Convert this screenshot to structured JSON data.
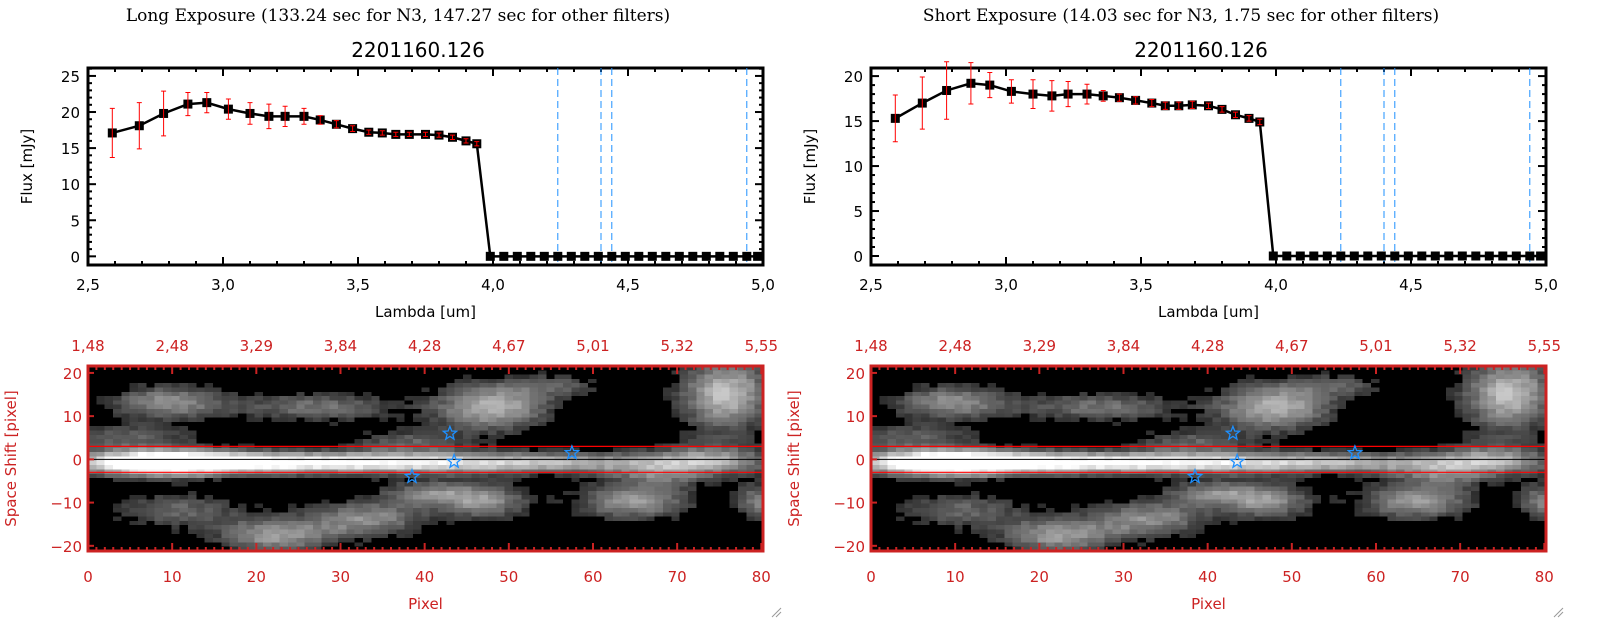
{
  "colors": {
    "data": "#000000",
    "errorbar": "#ff0000",
    "filter_lines": "#1e90ff",
    "image_axes": "#cc2222",
    "aperture_lines": "#ff0000",
    "stars": "#1e90ff"
  },
  "panels": [
    {
      "title": "Long Exposure (133.24 sec for N3, 147.27 sec for other filters)",
      "subtitle": "2201160.126"
    },
    {
      "title": "Short Exposure (14.03 sec for N3, 1.75 sec for other filters)",
      "subtitle": "2201160.126"
    }
  ],
  "chart_data": [
    {
      "type": "line",
      "title": "2201160.126",
      "xlabel": "Lambda [um]",
      "ylabel": "Flux [mJy]",
      "xlim": [
        2.5,
        5.0
      ],
      "ylim": [
        -1.2,
        26.1
      ],
      "xticks": [
        "2.5",
        "3.0",
        "3.5",
        "4.0",
        "4.5",
        "5.0"
      ],
      "yticks": [
        "0",
        "5",
        "10",
        "15",
        "20",
        "25"
      ],
      "filter_lines_x": [
        4.24,
        4.4,
        4.44,
        4.94
      ],
      "x": [
        2.59,
        2.69,
        2.78,
        2.87,
        2.94,
        3.02,
        3.1,
        3.17,
        3.23,
        3.3,
        3.36,
        3.42,
        3.48,
        3.54,
        3.59,
        3.64,
        3.69,
        3.75,
        3.8,
        3.85,
        3.9,
        3.94,
        3.99,
        4.04,
        4.09,
        4.14,
        4.19,
        4.24,
        4.29,
        4.34,
        4.39,
        4.44,
        4.49,
        4.54,
        4.59,
        4.64,
        4.69,
        4.74,
        4.79,
        4.84,
        4.89,
        4.94,
        4.98
      ],
      "y": [
        17.1,
        18.1,
        19.8,
        21.1,
        21.3,
        20.4,
        19.8,
        19.4,
        19.4,
        19.4,
        18.9,
        18.3,
        17.7,
        17.2,
        17.1,
        16.9,
        16.9,
        16.9,
        16.8,
        16.5,
        16.0,
        15.6,
        0,
        0,
        0,
        0,
        0,
        0,
        0,
        0,
        0,
        0,
        0,
        0,
        0,
        0,
        0,
        0,
        0,
        0,
        0,
        0,
        0
      ],
      "yerr": [
        3.4,
        3.2,
        3.1,
        1.6,
        1.4,
        1.4,
        1.5,
        1.7,
        1.4,
        1.1,
        0.6,
        0.5,
        0.4,
        0.3,
        0.3,
        0.3,
        0.3,
        0.3,
        0.3,
        0.3,
        0.3,
        0.3,
        0,
        0,
        0,
        0,
        0,
        0,
        0,
        0,
        0,
        0,
        0,
        0,
        0,
        0,
        0,
        0,
        0,
        0,
        0,
        0,
        0
      ]
    },
    {
      "type": "line",
      "title": "2201160.126",
      "xlabel": "Lambda [um]",
      "ylabel": "Flux [mJy]",
      "xlim": [
        2.5,
        5.0
      ],
      "ylim": [
        -1.0,
        20.9
      ],
      "xticks": [
        "2.5",
        "3.0",
        "3.5",
        "4.0",
        "4.5",
        "5.0"
      ],
      "yticks": [
        "0",
        "5",
        "10",
        "15",
        "20"
      ],
      "filter_lines_x": [
        4.24,
        4.4,
        4.44,
        4.94
      ],
      "x": [
        2.59,
        2.69,
        2.78,
        2.87,
        2.94,
        3.02,
        3.1,
        3.17,
        3.23,
        3.3,
        3.36,
        3.42,
        3.48,
        3.54,
        3.59,
        3.64,
        3.69,
        3.75,
        3.8,
        3.85,
        3.9,
        3.94,
        3.99,
        4.04,
        4.09,
        4.14,
        4.19,
        4.24,
        4.29,
        4.34,
        4.39,
        4.44,
        4.49,
        4.54,
        4.59,
        4.64,
        4.69,
        4.74,
        4.79,
        4.84,
        4.89,
        4.94,
        4.98
      ],
      "y": [
        15.3,
        17.0,
        18.4,
        19.2,
        19.0,
        18.3,
        18.0,
        17.8,
        18.0,
        18.0,
        17.8,
        17.6,
        17.3,
        17.0,
        16.7,
        16.7,
        16.8,
        16.7,
        16.3,
        15.7,
        15.3,
        14.9,
        0,
        0,
        0,
        0,
        0,
        0,
        0,
        0,
        0,
        0,
        0,
        0,
        0,
        0,
        0,
        0,
        0,
        0,
        0,
        0,
        0
      ],
      "yerr": [
        2.6,
        2.9,
        3.2,
        2.3,
        1.4,
        1.3,
        1.6,
        1.7,
        1.4,
        1.1,
        0.6,
        0.4,
        0.4,
        0.4,
        0.4,
        0.4,
        0.4,
        0.3,
        0.3,
        0.3,
        0.3,
        0.3,
        0,
        0,
        0,
        0,
        0,
        0,
        0,
        0,
        0,
        0,
        0,
        0,
        0,
        0,
        0,
        0,
        0,
        0,
        0,
        0,
        0
      ]
    },
    {
      "type": "heatmap",
      "xlabel": "Pixel",
      "ylabel": "Space Shift [pixel]",
      "xlim": [
        0,
        80.2
      ],
      "ylim": [
        -21.2,
        21.6
      ],
      "xticks": [
        "0",
        "10",
        "20",
        "30",
        "40",
        "50",
        "60",
        "70",
        "80"
      ],
      "yticks": [
        "-20",
        "-10",
        "0",
        "10",
        "20"
      ],
      "top_axis_label_ticks": [
        "1.48",
        "2.48",
        "3.29",
        "3.84",
        "4.28",
        "4.67",
        "5.01",
        "5.32",
        "5.55"
      ],
      "aperture_lines_y": [
        3,
        -3
      ],
      "center_line_y": 0,
      "stars": [
        [
          43,
          6
        ],
        [
          43.5,
          -0.5
        ],
        [
          38.5,
          -4
        ],
        [
          57.5,
          1.5
        ]
      ]
    },
    {
      "type": "heatmap",
      "xlabel": "Pixel",
      "ylabel": "Space Shift [pixel]",
      "xlim": [
        0,
        80.2
      ],
      "ylim": [
        -21.2,
        21.6
      ],
      "xticks": [
        "0",
        "10",
        "20",
        "30",
        "40",
        "50",
        "60",
        "70",
        "80"
      ],
      "yticks": [
        "-20",
        "-10",
        "0",
        "10",
        "20"
      ],
      "top_axis_label_ticks": [
        "1.48",
        "2.48",
        "3.29",
        "3.84",
        "4.28",
        "4.67",
        "5.01",
        "5.32",
        "5.55"
      ],
      "aperture_lines_y": [
        3,
        -3
      ],
      "center_line_y": 0,
      "stars": [
        [
          43,
          6
        ],
        [
          43.5,
          -0.5
        ],
        [
          38.5,
          -4
        ],
        [
          57.5,
          1.5
        ]
      ]
    }
  ]
}
